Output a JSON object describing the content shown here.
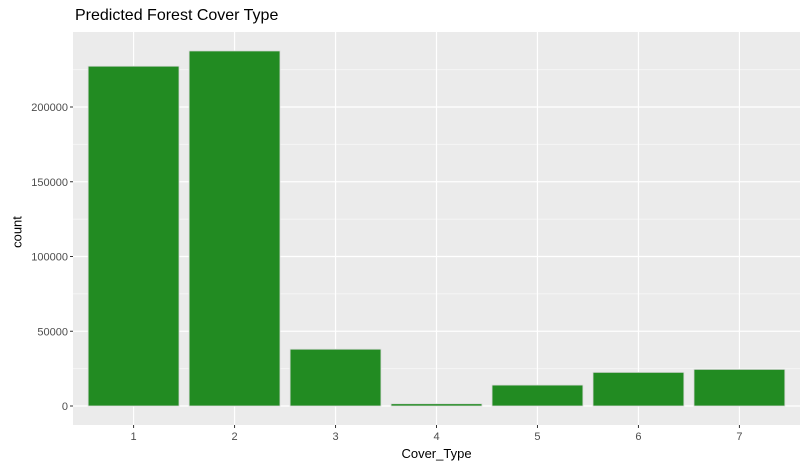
{
  "chart_data": {
    "type": "bar",
    "title": "Predicted Forest Cover Type",
    "xlabel": "Cover_Type",
    "ylabel": "count",
    "categories": [
      "1",
      "2",
      "3",
      "4",
      "5",
      "6",
      "7"
    ],
    "values": [
      227300,
      237500,
      38000,
      1500,
      14000,
      22500,
      24500
    ],
    "ylim": [
      0,
      250000
    ],
    "yticks": [
      0,
      50000,
      100000,
      150000,
      200000
    ],
    "ytick_labels": [
      "0",
      "50000",
      "100000",
      "150000",
      "200000"
    ],
    "grid": true,
    "legend": "none",
    "colors": {
      "bar_fill": "#228B22",
      "bar_stroke": "#d9d9d9",
      "panel_background": "#EBEBEB",
      "grid_major": "#FFFFFF",
      "grid_minor": "#F5F5F5",
      "tick_text": "#4D4D4D"
    }
  }
}
